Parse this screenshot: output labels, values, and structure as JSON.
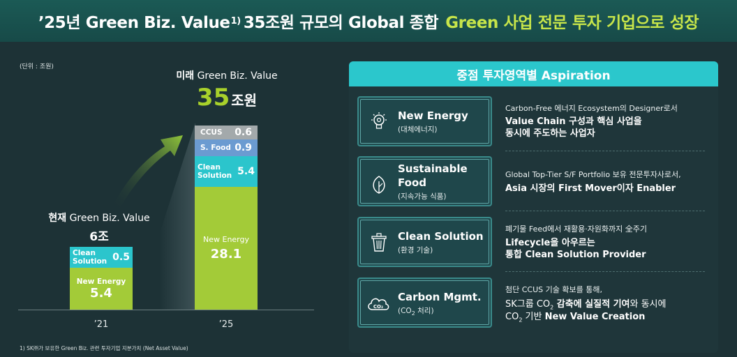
{
  "header": {
    "title_part1": "’25년 Green Biz. Value",
    "title_sup": "1)",
    "title_part2": "35조원 규모의 Global 종합",
    "title_highlight": "Green 사업 전문 투자 기업으로 성장"
  },
  "chart_data": {
    "type": "bar",
    "stacked": true,
    "unit_label": "(단위 : 조원)",
    "categories": [
      "’21",
      "’25"
    ],
    "series": [
      {
        "name": "New Energy",
        "values": [
          5.4,
          28.1
        ],
        "color": "#a3cb38"
      },
      {
        "name": "Clean Solution",
        "values": [
          0.5,
          5.4
        ],
        "color": "#2bc5cc"
      },
      {
        "name": "S. Food",
        "values": [
          null,
          0.9
        ],
        "color": "#6b9bd1"
      },
      {
        "name": "CCUS",
        "values": [
          null,
          0.6
        ],
        "color": "#a3a9ab"
      }
    ],
    "segment_labels": {
      "new_energy": "New Energy",
      "clean_solution_l1": "Clean",
      "clean_solution_l2": "Solution",
      "s_food": "S. Food",
      "ccus": "CCUS"
    },
    "current": {
      "label_bold": "현재",
      "label": "Green Biz. Value",
      "total": "6조"
    },
    "future": {
      "label_bold": "미래",
      "label": "Green Biz. Value",
      "total": "35",
      "total_unit": "조원"
    },
    "ylim": [
      0,
      35
    ]
  },
  "footnote": "1) SK㈜가 보유한 Green Biz. 관련 투자기업 지분가치  (Net Asset Value)",
  "aspiration": {
    "title": "중점 투자영역별 Aspiration",
    "items": [
      {
        "name": "New Energy",
        "sub": "(대체에너지)",
        "icon": "lightbulb-icon",
        "desc_small": "Carbon-Free 에너지 Ecosystem의 Designer로서",
        "desc_line1": "Value Chain 구성과 핵심 사업을",
        "desc_line2": "동시에 주도하는 사업자"
      },
      {
        "name_l1": "Sustainable",
        "name_l2": "Food",
        "sub": "(지속가능 식품)",
        "icon": "leaf-icon",
        "desc_small": "Global Top-Tier S/F Portfolio 보유 전문투자사로서,",
        "desc_line1": "Asia 시장의 First Mover이자 Enabler"
      },
      {
        "name": "Clean Solution",
        "sub": "(환경 기술)",
        "icon": "recycling-bin-icon",
        "desc_small": "폐기물 Feed에서 재활용·자원화까지 全주기",
        "desc_line1": "Lifecycle을 아우르는",
        "desc_line2": "통합 Clean Solution Provider"
      },
      {
        "name": "Carbon Mgmt.",
        "sub_pre": "(CO",
        "sub_sub": "2",
        "sub_post": " 처리)",
        "icon": "co2-cloud-icon",
        "desc_small": "첨단 CCUS 기술 확보를 통해,",
        "desc_l1_a": "SK그룹 CO",
        "desc_l1_sub": "2",
        "desc_l1_b": " 감축에 실질적 기여",
        "desc_l1_c": "와 동시에",
        "desc_l2_a": "CO",
        "desc_l2_sub": "2",
        "desc_l2_b": " 기반 ",
        "desc_l2_c": "New Value Creation"
      }
    ]
  }
}
